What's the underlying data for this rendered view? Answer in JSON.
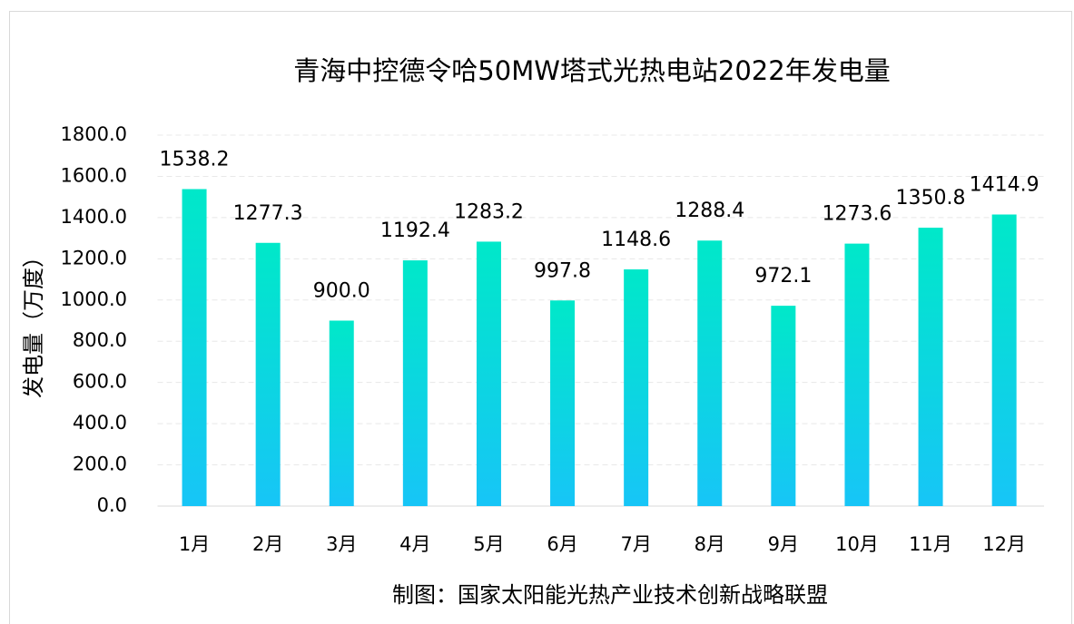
{
  "chart_data": {
    "type": "bar",
    "title": "青海中控德令哈50MW塔式光热电站2022年发电量",
    "y_label": "发电量（万度）",
    "caption": "制图：国家太阳能光热产业技术创新战略联盟",
    "categories": [
      "1月",
      "2月",
      "3月",
      "4月",
      "5月",
      "6月",
      "7月",
      "8月",
      "9月",
      "10月",
      "11月",
      "12月"
    ],
    "values": [
      1538.2,
      1277.3,
      900,
      1192.4,
      1283.2,
      997.8,
      1148.6,
      1288.4,
      972.1,
      1273.6,
      1350.8,
      1414.9
    ],
    "value_labels": [
      "1538.2",
      "1277.3",
      "900.0",
      "1192.4",
      "1283.2",
      "997.8",
      "1148.6",
      "1288.4",
      "972.1",
      "1273.6",
      "1350.8",
      "1414.9"
    ],
    "gradient": [
      "#00e8c9",
      "#17c5f7"
    ],
    "ylim": [
      0,
      1800
    ],
    "yticks": [
      {
        "value": 0,
        "label": "0.0"
      },
      {
        "value": 200,
        "label": "200.0"
      },
      {
        "value": 400,
        "label": "400.0"
      },
      {
        "value": 600,
        "label": "600.0"
      },
      {
        "value": 800,
        "label": "800.0"
      },
      {
        "value": 1000,
        "label": "1000.0"
      },
      {
        "value": 1200,
        "label": "1200.0"
      },
      {
        "value": 1400,
        "label": "1400.0"
      },
      {
        "value": 1600,
        "label": "1600.0"
      },
      {
        "value": 1800,
        "label": "1800.0"
      }
    ],
    "grid": true
  }
}
